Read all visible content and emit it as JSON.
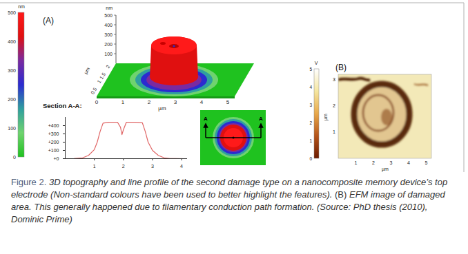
{
  "panel_a": {
    "label": "(A)",
    "colorbar": {
      "unit": "nm",
      "range": [
        0,
        500
      ],
      "ticks": [
        0,
        100,
        200,
        300,
        400,
        500
      ],
      "colors": [
        "#1fc21f",
        "#6fd36f",
        "#2f9f9f",
        "#2b2bd0",
        "#7a2aa0",
        "#e01010",
        "#ff1a1a"
      ]
    },
    "surface_3d": {
      "z_unit": "nm",
      "z_ticks": [
        100,
        200,
        300,
        400,
        500
      ],
      "x_unit": "µm",
      "x_ticks": [
        0,
        1,
        2,
        3,
        4,
        5
      ],
      "y_unit": "µm",
      "y_ticks": [
        0.5,
        1,
        1.5,
        2
      ]
    },
    "map_2d": {
      "section_ends": [
        "A",
        "A"
      ]
    }
  },
  "chart_data": {
    "type": "line",
    "title": "Section A-A:",
    "x": [
      0,
      0.3,
      0.6,
      0.8,
      1.0,
      1.1,
      1.2,
      1.3,
      1.5,
      1.8,
      1.9,
      1.95,
      2.0,
      2.1,
      2.4,
      2.65,
      2.75,
      2.85,
      3.0,
      3.2,
      3.4,
      3.6,
      4.1
    ],
    "values": [
      0,
      2,
      10,
      40,
      110,
      200,
      330,
      430,
      440,
      440,
      380,
      290,
      350,
      440,
      440,
      435,
      330,
      200,
      100,
      40,
      10,
      2,
      0
    ],
    "color": "#e06666",
    "xlim": [
      0,
      4.2
    ],
    "xticks": [
      1,
      2,
      3,
      4
    ],
    "ylim": [
      0,
      500
    ],
    "yticks": [
      {
        "value": 0,
        "label": "+0"
      },
      {
        "value": 100,
        "label": "+100"
      },
      {
        "value": 200,
        "label": "+200"
      },
      {
        "value": 300,
        "label": "+300"
      },
      {
        "value": 400,
        "label": "+400"
      }
    ]
  },
  "panel_b": {
    "label": "(B)",
    "colorbar": {
      "unit": "V",
      "range": [
        0,
        5
      ],
      "ticks": [
        0,
        1,
        2,
        3,
        4,
        5
      ],
      "colors": [
        "#6b1a00",
        "#b5541a",
        "#e8a84a",
        "#f5e6a0",
        "#ffffff"
      ]
    },
    "x_unit": "µm",
    "x_ticks": [
      1,
      2,
      3,
      4,
      5
    ],
    "y_unit": "µm",
    "y_ticks": [
      1,
      2,
      3
    ]
  },
  "caption": {
    "label": "Figure 2.",
    "segments": [
      {
        "text": "3D topography and line profile of the second damage type on a nanocomposite memory device’s top electrode (Non-standard colours have been used to better highlight the features).",
        "italic": true
      },
      {
        "text": "(B)",
        "italic": false
      },
      {
        "text": "EFM image of damaged area. This generally happened due to filamentary conduction path formation. (Source:  PhD thesis (2010), Dominic Prime)",
        "italic": true
      }
    ]
  }
}
